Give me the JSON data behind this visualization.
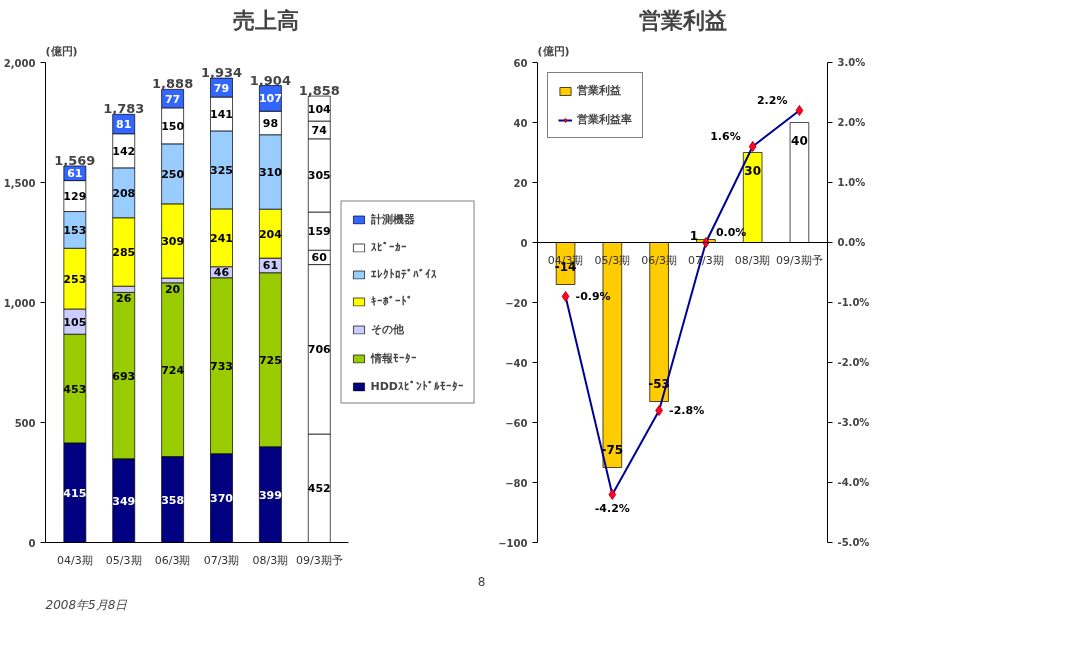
{
  "chart_data": [
    {
      "type": "bar",
      "title": "売上高",
      "ylabel": "(億円)",
      "stacked": true,
      "data_labels": true,
      "legend": "right",
      "grid": false,
      "categories": [
        "04/3期",
        "05/3期",
        "06/3期",
        "07/3期",
        "08/3期",
        "09/3期予"
      ],
      "ylim": [
        0,
        2000
      ],
      "yticks": [
        0,
        500,
        {
          "value": 1000,
          "label": "1,000"
        },
        {
          "value": 1500,
          "label": "1,500"
        },
        {
          "value": 2000,
          "label": "2,000"
        }
      ],
      "totals": [
        "1,569",
        "1,783",
        "1,888",
        "1,934",
        "1,904",
        "1,858"
      ],
      "annotations": [
        "8",
        "2008年5月8日"
      ],
      "series": [
        {
          "name": "HDDｽﾋﾟﾝﾄﾞﾙﾓｰﾀｰ",
          "color": "#000080",
          "colors": [
            "#000080",
            "#000080",
            "#000080",
            "#000080",
            "#000080",
            "#ffffff"
          ],
          "values": [
            415,
            349,
            358,
            370,
            399,
            452
          ]
        },
        {
          "name": "情報ﾓｰﾀｰ",
          "color": "#99cc00",
          "colors": [
            "#99cc00",
            "#99cc00",
            "#99cc00",
            "#99cc00",
            "#99cc00",
            "#ffffff"
          ],
          "values": [
            453,
            693,
            724,
            733,
            725,
            706
          ]
        },
        {
          "name": "その他",
          "color": "#ccccff",
          "colors": [
            "#ccccff",
            "#ccccff",
            "#ccccff",
            "#ccccff",
            "#ccccff",
            "#ffffff"
          ],
          "values": [
            105,
            26,
            20,
            46,
            61,
            60
          ]
        },
        {
          "name": "ｷｰﾎﾞｰﾄﾞ",
          "color": "#ffff00",
          "colors": [
            "#ffff00",
            "#ffff00",
            "#ffff00",
            "#ffff00",
            "#ffff00",
            "#ffffff"
          ],
          "values": [
            253,
            285,
            309,
            241,
            204,
            159
          ]
        },
        {
          "name": "ｴﾚｸﾄﾛﾃﾞﾊﾞｲｽ",
          "color": "#99ccff",
          "colors": [
            "#99ccff",
            "#99ccff",
            "#99ccff",
            "#99ccff",
            "#99ccff",
            "#ffffff"
          ],
          "values": [
            153,
            208,
            250,
            325,
            310,
            305
          ]
        },
        {
          "name": "ｽﾋﾟｰｶｰ",
          "color": "#ffffff",
          "colors": [
            "#ffffff",
            "#ffffff",
            "#ffffff",
            "#ffffff",
            "#ffffff",
            "#ffffff"
          ],
          "values": [
            129,
            142,
            150,
            141,
            98,
            74
          ]
        },
        {
          "name": "計測機器",
          "color": "#3366ff",
          "colors": [
            "#3366ff",
            "#3366ff",
            "#3366ff",
            "#3366ff",
            "#3366ff",
            "#ffffff"
          ],
          "values": [
            61,
            81,
            77,
            79,
            107,
            104
          ]
        }
      ]
    },
    {
      "type": "bar",
      "title": "営業利益",
      "ylabel": "(億円)",
      "legend": "top left",
      "grid": false,
      "marker": "diamond",
      "categories": [
        "04/3期",
        "05/3期",
        "06/3期",
        "07/3期",
        "08/3期",
        "09/3期予"
      ],
      "ylim": [
        -100,
        60
      ],
      "yticks": [
        -100,
        -80,
        -60,
        -40,
        -20,
        0,
        20,
        40,
        60
      ],
      "y2lim": [
        -5,
        3
      ],
      "y2ticks": [
        {
          "value": -5,
          "label": "-5.0%"
        },
        {
          "value": -4,
          "label": "-4.0%"
        },
        {
          "value": -3,
          "label": "-3.0%"
        },
        {
          "value": -2,
          "label": "-2.0%"
        },
        {
          "value": -1,
          "label": "-1.0%"
        },
        {
          "value": 0,
          "label": "0.0%"
        },
        {
          "value": 1,
          "label": "1.0%"
        },
        {
          "value": 2,
          "label": "2.0%"
        },
        {
          "value": 3,
          "label": "3.0%"
        }
      ],
      "series": [
        {
          "name": "営業利益",
          "type": "bar",
          "color": "#ffcc00",
          "colors": [
            "#ffcc00",
            "#ffcc00",
            "#ffcc00",
            "#ffcc00",
            "#ffff00",
            "#ffffff"
          ],
          "values": [
            -14,
            -75,
            -53,
            1,
            30,
            40
          ],
          "value_labels": [
            "-14",
            "-75",
            "-53",
            "1",
            "30",
            "40"
          ]
        },
        {
          "name": "営業利益率",
          "type": "line",
          "axis": "y2",
          "color": "#000099",
          "values": [
            -0.9,
            -4.2,
            -2.8,
            0.0,
            1.6,
            2.2
          ],
          "value_labels": [
            "-0.9%",
            "-4.2%",
            "-2.8%",
            "0.0%",
            "1.6%",
            "2.2%"
          ]
        }
      ]
    }
  ]
}
